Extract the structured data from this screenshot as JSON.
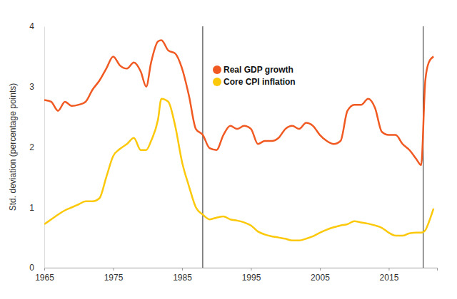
{
  "chart_data": {
    "type": "line",
    "y_label": "Std. deviation (percentage points)",
    "x": [
      1965,
      1966,
      1967,
      1968,
      1969,
      1970,
      1971,
      1972,
      1973,
      1974,
      1975,
      1976,
      1977,
      1978,
      1979,
      1979.8,
      1980.5,
      1981.5,
      1982,
      1983,
      1984,
      1985,
      1986,
      1987,
      1988,
      1989,
      1990,
      1991,
      1992,
      1993,
      1994,
      1995,
      1996,
      1997,
      1998,
      1999,
      2000,
      2001,
      2002,
      2003,
      2004,
      2005,
      2006,
      2007,
      2008,
      2009,
      2010,
      2011,
      2012,
      2013,
      2014,
      2015,
      2016,
      2017,
      2018,
      2019,
      2019.7,
      2020.3,
      2020.8,
      2021.5
    ],
    "series": [
      {
        "name": "Real GDP growth",
        "color": "#f05a22",
        "values": [
          2.78,
          2.75,
          2.6,
          2.75,
          2.68,
          2.7,
          2.75,
          2.95,
          3.1,
          3.3,
          3.5,
          3.35,
          3.3,
          3.4,
          3.25,
          3.0,
          3.4,
          3.75,
          3.77,
          3.6,
          3.55,
          3.3,
          2.85,
          2.3,
          2.2,
          1.98,
          1.95,
          2.2,
          2.35,
          2.3,
          2.35,
          2.3,
          2.05,
          2.1,
          2.1,
          2.15,
          2.3,
          2.35,
          2.3,
          2.4,
          2.35,
          2.2,
          2.1,
          2.05,
          2.1,
          2.6,
          2.7,
          2.7,
          2.8,
          2.65,
          2.25,
          2.2,
          2.2,
          2.05,
          1.95,
          1.8,
          1.7,
          3.1,
          3.4,
          3.5
        ]
      },
      {
        "name": "Core CPI inflation",
        "color": "#fcc80a",
        "values": [
          0.72,
          0.8,
          0.88,
          0.95,
          1.0,
          1.05,
          1.1,
          1.1,
          1.15,
          1.5,
          1.85,
          1.97,
          2.05,
          2.15,
          1.95,
          1.95,
          2.1,
          2.45,
          2.8,
          2.75,
          2.35,
          1.75,
          1.35,
          1.0,
          0.88,
          0.8,
          0.83,
          0.85,
          0.8,
          0.78,
          0.75,
          0.7,
          0.6,
          0.55,
          0.52,
          0.5,
          0.48,
          0.45,
          0.45,
          0.48,
          0.52,
          0.58,
          0.63,
          0.67,
          0.7,
          0.72,
          0.77,
          0.75,
          0.73,
          0.7,
          0.66,
          0.58,
          0.53,
          0.53,
          0.57,
          0.58,
          0.58,
          0.62,
          0.75,
          0.98
        ]
      }
    ],
    "vlines": [
      1988,
      2020
    ],
    "xlim": [
      1965,
      2022
    ],
    "xticks": [
      1965,
      1975,
      1985,
      1995,
      2005,
      2015
    ],
    "ylim": [
      0,
      4
    ],
    "yticks": [
      0,
      1,
      2,
      3,
      4
    ],
    "legend": "top",
    "grid": false
  }
}
